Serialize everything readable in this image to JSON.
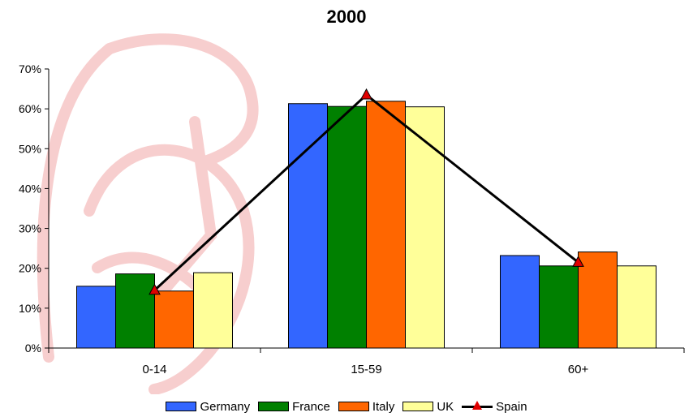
{
  "chart_data": {
    "type": "bar",
    "title": "2000",
    "categories": [
      "0-14",
      "15-59",
      "60+"
    ],
    "ylim": [
      0,
      70
    ],
    "yticks": [
      "0%",
      "10%",
      "20%",
      "30%",
      "40%",
      "50%",
      "60%",
      "70%"
    ],
    "ytick_values": [
      0,
      10,
      20,
      30,
      40,
      50,
      60,
      70
    ],
    "grid": false,
    "legend_position": "bottom",
    "series": [
      {
        "name": "Germany",
        "kind": "bar",
        "color": "#3366ff",
        "values": [
          15.5,
          61.3,
          23.2
        ]
      },
      {
        "name": "France",
        "kind": "bar",
        "color": "#008000",
        "values": [
          18.6,
          60.6,
          20.6
        ]
      },
      {
        "name": "Italy",
        "kind": "bar",
        "color": "#ff6600",
        "values": [
          14.3,
          61.9,
          24.1
        ]
      },
      {
        "name": "UK",
        "kind": "bar",
        "color": "#ffff99",
        "values": [
          18.9,
          60.5,
          20.6
        ]
      },
      {
        "name": "Spain",
        "kind": "line",
        "color": "#000000",
        "marker": "triangle",
        "marker_color": "#e00000",
        "values": [
          14.5,
          63.5,
          21.5
        ]
      }
    ]
  }
}
